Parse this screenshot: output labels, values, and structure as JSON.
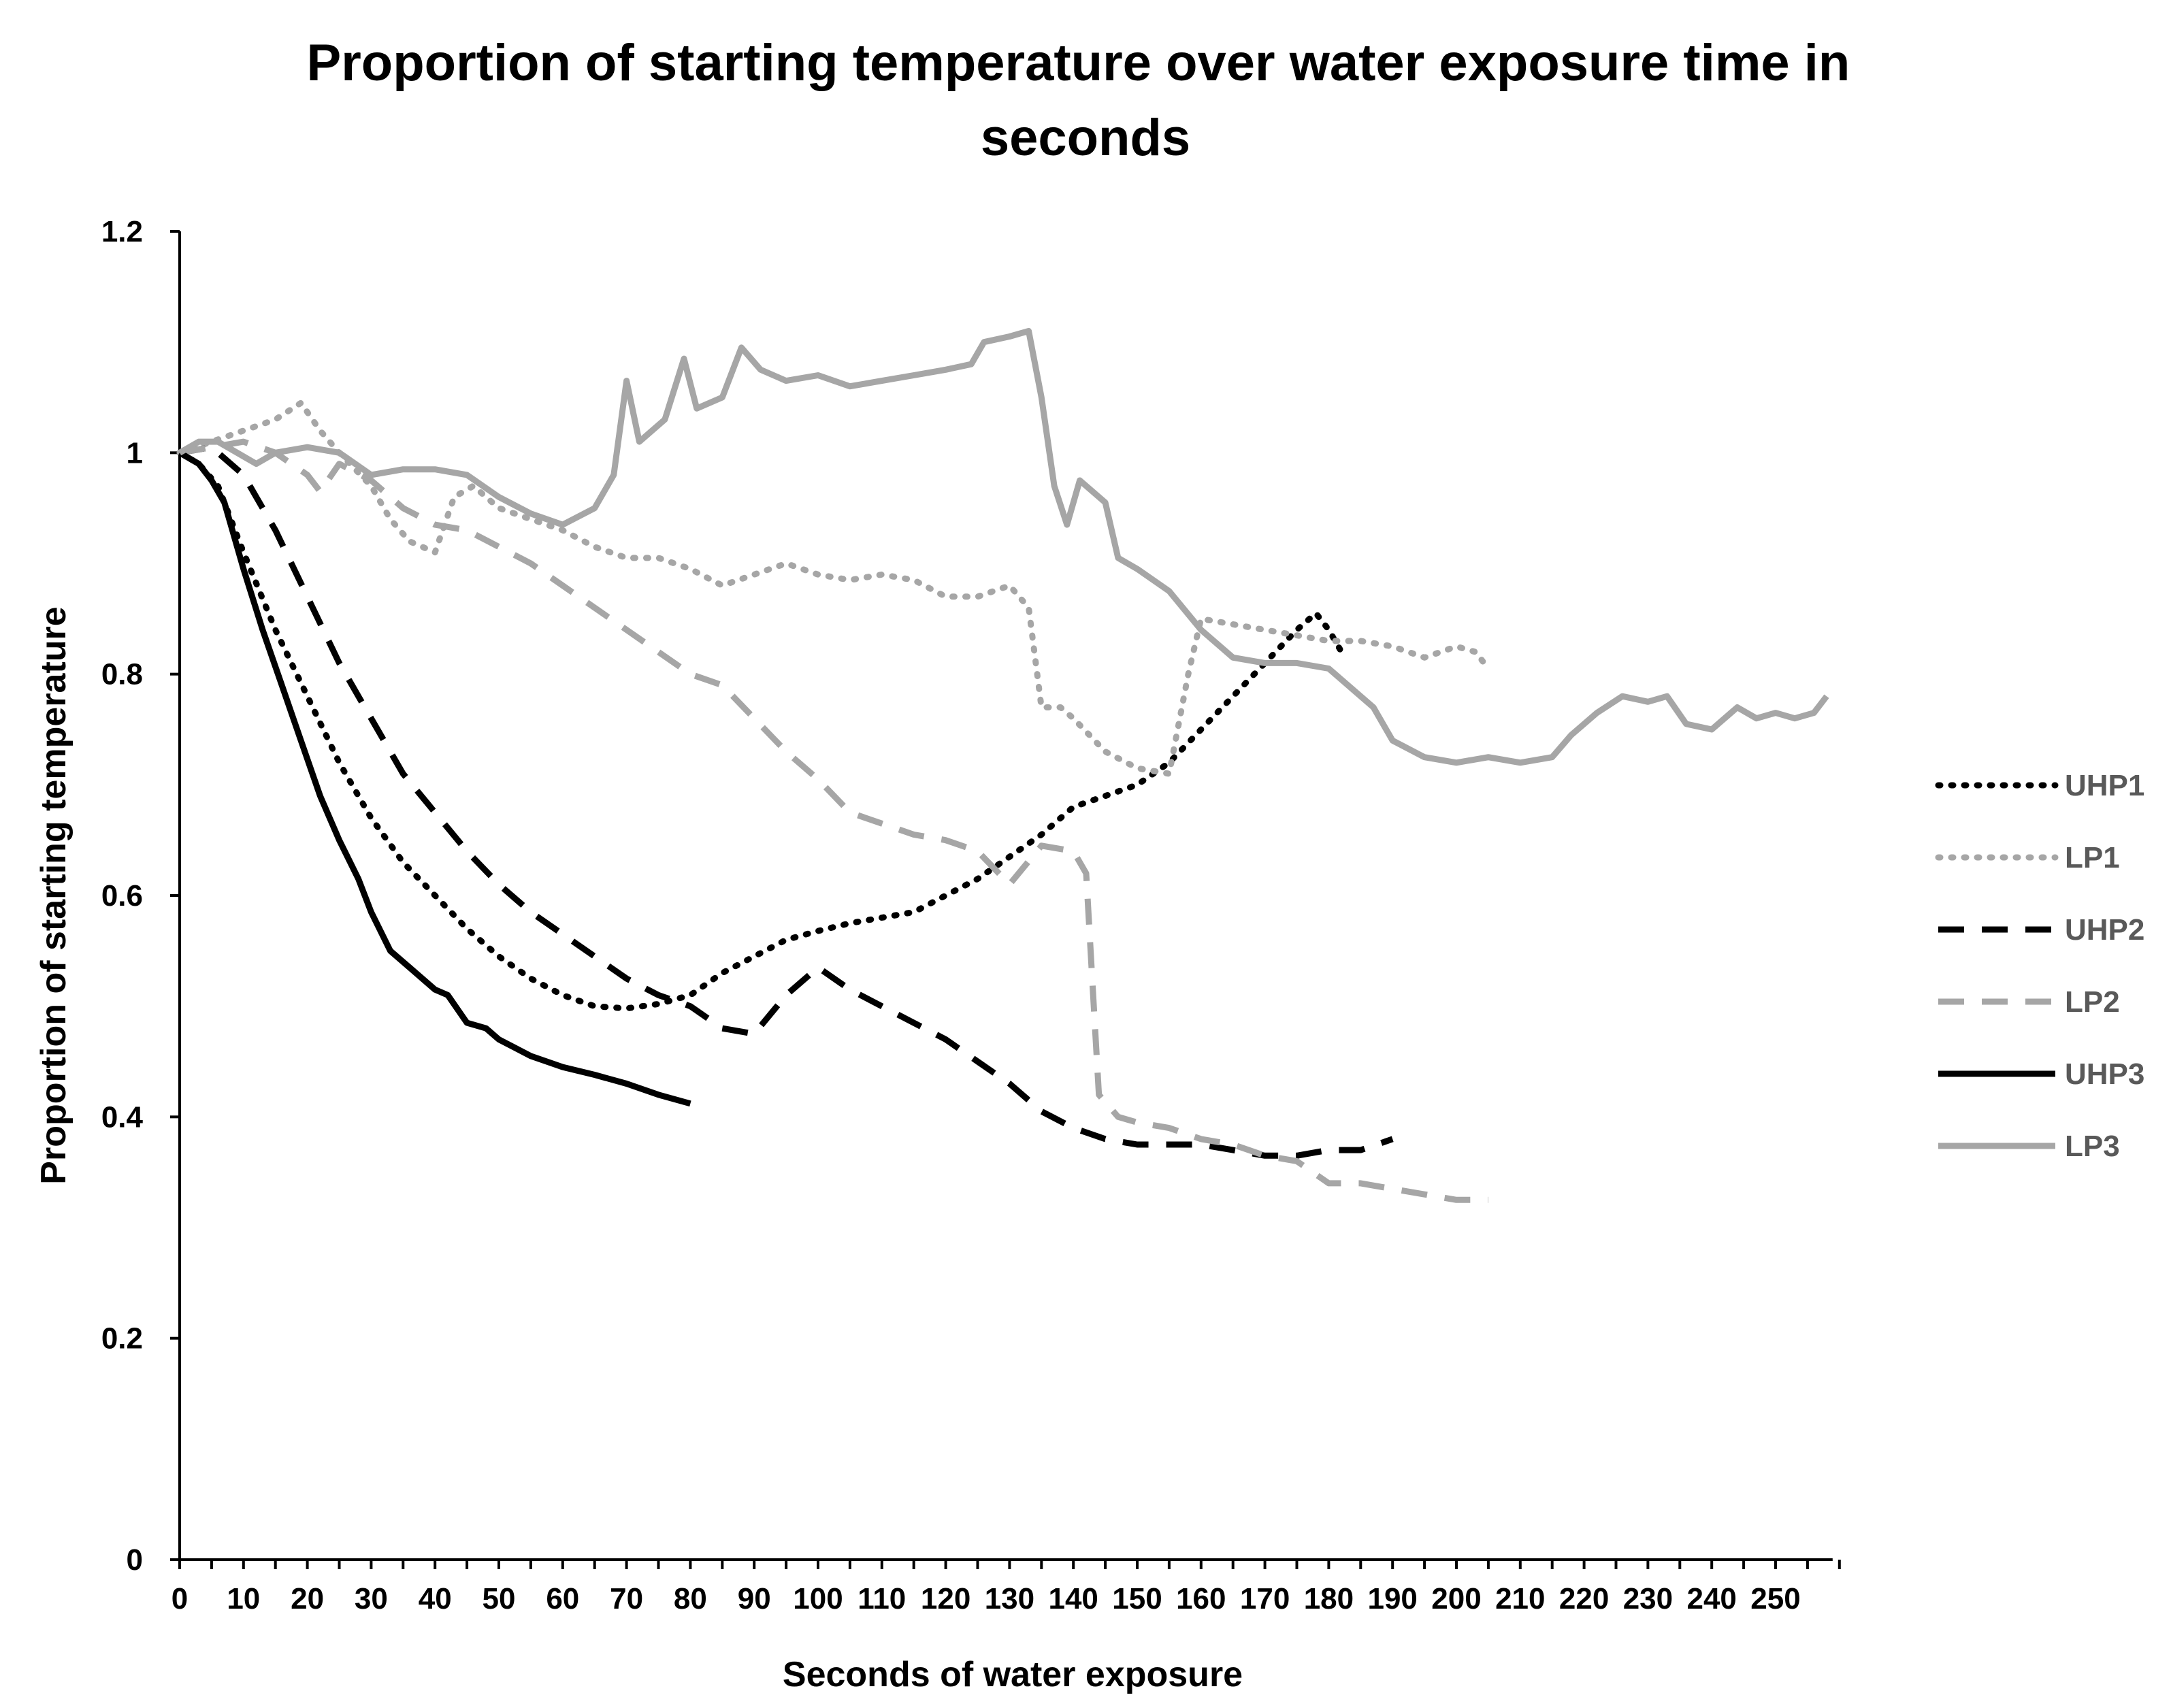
{
  "chart_data": {
    "type": "line",
    "title": "Proportion of starting temperature over water exposure time in seconds",
    "xlabel": "Seconds of water exposure",
    "ylabel": "Proportion of starting temperature",
    "xlim": [
      0,
      260
    ],
    "ylim": [
      0,
      1.2
    ],
    "xticks": [
      "0",
      "10",
      "20",
      "30",
      "40",
      "50",
      "60",
      "70",
      "80",
      "90",
      "100",
      "110",
      "120",
      "130",
      "140",
      "150",
      "160",
      "170",
      "180",
      "190",
      "200",
      "210",
      "220",
      "230",
      "240",
      "250"
    ],
    "yticks": [
      "0",
      "0.2",
      "0.4",
      "0.6",
      "0.8",
      "1",
      "1.2"
    ],
    "grid": false,
    "legend_position": "right",
    "series": [
      {
        "name": "UHP1",
        "color": "#000000",
        "style": "dotted",
        "points": [
          [
            0,
            1.0
          ],
          [
            3,
            0.99
          ],
          [
            6,
            0.97
          ],
          [
            10,
            0.91
          ],
          [
            15,
            0.84
          ],
          [
            20,
            0.78
          ],
          [
            25,
            0.72
          ],
          [
            30,
            0.67
          ],
          [
            35,
            0.63
          ],
          [
            40,
            0.6
          ],
          [
            45,
            0.57
          ],
          [
            50,
            0.545
          ],
          [
            55,
            0.525
          ],
          [
            60,
            0.51
          ],
          [
            65,
            0.5
          ],
          [
            70,
            0.498
          ],
          [
            75,
            0.502
          ],
          [
            80,
            0.51
          ],
          [
            85,
            0.53
          ],
          [
            90,
            0.545
          ],
          [
            95,
            0.56
          ],
          [
            100,
            0.568
          ],
          [
            105,
            0.575
          ],
          [
            110,
            0.58
          ],
          [
            115,
            0.585
          ],
          [
            120,
            0.6
          ],
          [
            125,
            0.615
          ],
          [
            130,
            0.635
          ],
          [
            135,
            0.655
          ],
          [
            140,
            0.68
          ],
          [
            145,
            0.69
          ],
          [
            150,
            0.7
          ],
          [
            155,
            0.72
          ],
          [
            160,
            0.75
          ],
          [
            165,
            0.78
          ],
          [
            170,
            0.81
          ],
          [
            175,
            0.84
          ],
          [
            178,
            0.855
          ],
          [
            180,
            0.84
          ],
          [
            182,
            0.82
          ]
        ]
      },
      {
        "name": "LP1",
        "color": "#a6a6a6",
        "style": "dotted",
        "points": [
          [
            0,
            1.0
          ],
          [
            5,
            1.01
          ],
          [
            10,
            1.02
          ],
          [
            15,
            1.03
          ],
          [
            19,
            1.045
          ],
          [
            22,
            1.02
          ],
          [
            25,
            1.0
          ],
          [
            30,
            0.97
          ],
          [
            33,
            0.94
          ],
          [
            36,
            0.92
          ],
          [
            40,
            0.91
          ],
          [
            43,
            0.96
          ],
          [
            46,
            0.97
          ],
          [
            50,
            0.95
          ],
          [
            55,
            0.94
          ],
          [
            60,
            0.93
          ],
          [
            65,
            0.915
          ],
          [
            70,
            0.905
          ],
          [
            75,
            0.905
          ],
          [
            80,
            0.895
          ],
          [
            85,
            0.88
          ],
          [
            90,
            0.89
          ],
          [
            95,
            0.9
          ],
          [
            100,
            0.89
          ],
          [
            105,
            0.885
          ],
          [
            110,
            0.89
          ],
          [
            115,
            0.885
          ],
          [
            120,
            0.87
          ],
          [
            125,
            0.87
          ],
          [
            130,
            0.88
          ],
          [
            133,
            0.86
          ],
          [
            135,
            0.77
          ],
          [
            138,
            0.77
          ],
          [
            140,
            0.76
          ],
          [
            145,
            0.73
          ],
          [
            150,
            0.715
          ],
          [
            155,
            0.71
          ],
          [
            158,
            0.8
          ],
          [
            160,
            0.85
          ],
          [
            165,
            0.845
          ],
          [
            170,
            0.84
          ],
          [
            175,
            0.835
          ],
          [
            180,
            0.83
          ],
          [
            185,
            0.83
          ],
          [
            190,
            0.825
          ],
          [
            195,
            0.815
          ],
          [
            200,
            0.825
          ],
          [
            203,
            0.82
          ],
          [
            205,
            0.805
          ]
        ]
      },
      {
        "name": "UHP2",
        "color": "#000000",
        "style": "dashed",
        "points": [
          [
            0,
            1.0
          ],
          [
            5,
            1.005
          ],
          [
            10,
            0.98
          ],
          [
            15,
            0.93
          ],
          [
            20,
            0.87
          ],
          [
            25,
            0.81
          ],
          [
            30,
            0.76
          ],
          [
            35,
            0.71
          ],
          [
            40,
            0.675
          ],
          [
            45,
            0.64
          ],
          [
            50,
            0.61
          ],
          [
            55,
            0.585
          ],
          [
            60,
            0.565
          ],
          [
            65,
            0.545
          ],
          [
            70,
            0.525
          ],
          [
            75,
            0.51
          ],
          [
            80,
            0.5
          ],
          [
            85,
            0.48
          ],
          [
            90,
            0.475
          ],
          [
            95,
            0.51
          ],
          [
            100,
            0.535
          ],
          [
            105,
            0.515
          ],
          [
            110,
            0.5
          ],
          [
            115,
            0.485
          ],
          [
            120,
            0.47
          ],
          [
            125,
            0.45
          ],
          [
            130,
            0.43
          ],
          [
            135,
            0.405
          ],
          [
            140,
            0.39
          ],
          [
            145,
            0.38
          ],
          [
            150,
            0.375
          ],
          [
            155,
            0.375
          ],
          [
            160,
            0.375
          ],
          [
            165,
            0.37
          ],
          [
            170,
            0.365
          ],
          [
            175,
            0.365
          ],
          [
            180,
            0.37
          ],
          [
            185,
            0.37
          ],
          [
            190,
            0.38
          ]
        ]
      },
      {
        "name": "LP2",
        "color": "#a6a6a6",
        "style": "dashed",
        "points": [
          [
            0,
            1.0
          ],
          [
            5,
            1.005
          ],
          [
            10,
            1.01
          ],
          [
            15,
            1.0
          ],
          [
            20,
            0.98
          ],
          [
            22,
            0.965
          ],
          [
            25,
            0.99
          ],
          [
            30,
            0.975
          ],
          [
            35,
            0.95
          ],
          [
            40,
            0.935
          ],
          [
            45,
            0.93
          ],
          [
            50,
            0.915
          ],
          [
            55,
            0.9
          ],
          [
            60,
            0.88
          ],
          [
            65,
            0.86
          ],
          [
            70,
            0.84
          ],
          [
            75,
            0.82
          ],
          [
            80,
            0.8
          ],
          [
            85,
            0.79
          ],
          [
            90,
            0.76
          ],
          [
            95,
            0.73
          ],
          [
            100,
            0.705
          ],
          [
            105,
            0.675
          ],
          [
            110,
            0.665
          ],
          [
            115,
            0.655
          ],
          [
            120,
            0.65
          ],
          [
            125,
            0.64
          ],
          [
            130,
            0.61
          ],
          [
            135,
            0.645
          ],
          [
            140,
            0.64
          ],
          [
            142,
            0.62
          ],
          [
            143,
            0.52
          ],
          [
            144,
            0.42
          ],
          [
            147,
            0.4
          ],
          [
            150,
            0.395
          ],
          [
            155,
            0.39
          ],
          [
            160,
            0.38
          ],
          [
            165,
            0.375
          ],
          [
            170,
            0.365
          ],
          [
            175,
            0.36
          ],
          [
            180,
            0.34
          ],
          [
            185,
            0.34
          ],
          [
            190,
            0.335
          ],
          [
            195,
            0.33
          ],
          [
            200,
            0.325
          ],
          [
            205,
            0.325
          ]
        ]
      },
      {
        "name": "UHP3",
        "color": "#000000",
        "style": "solid",
        "points": [
          [
            0,
            1.0
          ],
          [
            3,
            0.99
          ],
          [
            5,
            0.975
          ],
          [
            7,
            0.955
          ],
          [
            10,
            0.895
          ],
          [
            13,
            0.84
          ],
          [
            16,
            0.79
          ],
          [
            19,
            0.74
          ],
          [
            22,
            0.69
          ],
          [
            25,
            0.65
          ],
          [
            28,
            0.615
          ],
          [
            30,
            0.585
          ],
          [
            33,
            0.55
          ],
          [
            36,
            0.535
          ],
          [
            40,
            0.515
          ],
          [
            42,
            0.51
          ],
          [
            45,
            0.485
          ],
          [
            48,
            0.48
          ],
          [
            50,
            0.47
          ],
          [
            55,
            0.455
          ],
          [
            60,
            0.445
          ],
          [
            65,
            0.438
          ],
          [
            70,
            0.43
          ],
          [
            75,
            0.42
          ],
          [
            80,
            0.412
          ]
        ]
      },
      {
        "name": "LP3",
        "color": "#a6a6a6",
        "style": "solid",
        "points": [
          [
            0,
            1.0
          ],
          [
            3,
            1.01
          ],
          [
            6,
            1.01
          ],
          [
            9,
            1.0
          ],
          [
            12,
            0.99
          ],
          [
            15,
            1.0
          ],
          [
            20,
            1.005
          ],
          [
            25,
            1.0
          ],
          [
            30,
            0.98
          ],
          [
            35,
            0.985
          ],
          [
            40,
            0.985
          ],
          [
            45,
            0.98
          ],
          [
            50,
            0.96
          ],
          [
            55,
            0.945
          ],
          [
            60,
            0.935
          ],
          [
            65,
            0.95
          ],
          [
            68,
            0.98
          ],
          [
            70,
            1.065
          ],
          [
            72,
            1.01
          ],
          [
            76,
            1.03
          ],
          [
            79,
            1.085
          ],
          [
            81,
            1.04
          ],
          [
            85,
            1.05
          ],
          [
            88,
            1.095
          ],
          [
            91,
            1.075
          ],
          [
            95,
            1.065
          ],
          [
            100,
            1.07
          ],
          [
            105,
            1.06
          ],
          [
            110,
            1.065
          ],
          [
            115,
            1.07
          ],
          [
            120,
            1.075
          ],
          [
            124,
            1.08
          ],
          [
            126,
            1.1
          ],
          [
            130,
            1.105
          ],
          [
            133,
            1.11
          ],
          [
            135,
            1.05
          ],
          [
            137,
            0.97
          ],
          [
            139,
            0.935
          ],
          [
            141,
            0.975
          ],
          [
            145,
            0.955
          ],
          [
            147,
            0.905
          ],
          [
            150,
            0.895
          ],
          [
            155,
            0.875
          ],
          [
            160,
            0.84
          ],
          [
            165,
            0.815
          ],
          [
            170,
            0.81
          ],
          [
            175,
            0.81
          ],
          [
            180,
            0.805
          ],
          [
            183,
            0.79
          ],
          [
            187,
            0.77
          ],
          [
            190,
            0.74
          ],
          [
            195,
            0.725
          ],
          [
            200,
            0.72
          ],
          [
            205,
            0.725
          ],
          [
            210,
            0.72
          ],
          [
            215,
            0.725
          ],
          [
            218,
            0.745
          ],
          [
            222,
            0.765
          ],
          [
            226,
            0.78
          ],
          [
            230,
            0.775
          ],
          [
            233,
            0.78
          ],
          [
            236,
            0.755
          ],
          [
            240,
            0.75
          ],
          [
            244,
            0.77
          ],
          [
            247,
            0.76
          ],
          [
            250,
            0.765
          ],
          [
            253,
            0.76
          ],
          [
            256,
            0.765
          ],
          [
            258,
            0.78
          ]
        ]
      }
    ]
  }
}
